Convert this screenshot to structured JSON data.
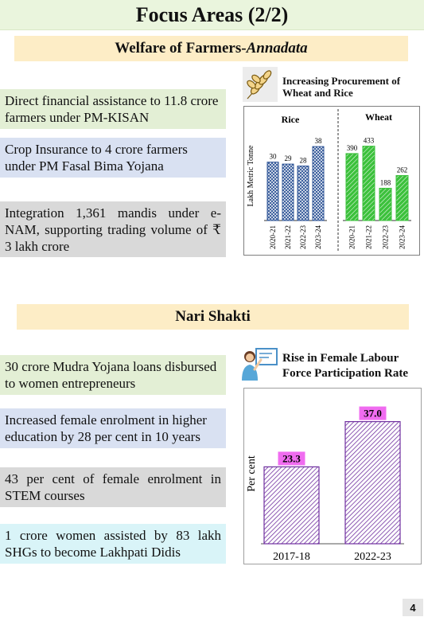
{
  "page": {
    "title": "Focus Areas (2/2)",
    "page_number": "4"
  },
  "farmers": {
    "heading_main": "Welfare of Farmers-",
    "heading_italic": "Annadata",
    "items": [
      "Direct financial assistance to 11.8 crore farmers under PM-KISAN",
      "Crop Insurance to 4 crore farmers under PM Fasal Bima Yojana",
      "Integration 1,361 mandis under e-NAM, supporting trading volume of ₹ 3 lakh crore"
    ],
    "chart_title": "Increasing Procurement of Wheat and Rice"
  },
  "nari": {
    "heading": "Nari Shakti",
    "items": [
      "30 crore Mudra Yojana loans disbursed to women entrepreneurs",
      "Increased female enrolment in higher education by 28 per cent in 10 years",
      "43 per cent of female enrolment in STEM courses",
      "1 crore women assisted by 83 lakh SHGs to become Lakhpati Didis"
    ],
    "chart_title": "Rise in Female Labour Force Participation Rate"
  },
  "chart_data": [
    {
      "type": "bar",
      "title": "Increasing Procurement of Wheat and Rice",
      "ylabel": "Lakh Metric Tonne",
      "panels": [
        {
          "name": "Rice",
          "categories": [
            "2020-21",
            "2021-22",
            "2022-23",
            "2023-24"
          ],
          "values": [
            30,
            29,
            28,
            38
          ],
          "color": "#2f5597",
          "ylim": [
            0,
            45
          ]
        },
        {
          "name": "Wheat",
          "categories": [
            "2020-21",
            "2021-22",
            "2022-23",
            "2023-24"
          ],
          "values": [
            390,
            433,
            188,
            262
          ],
          "color": "#3cc13c",
          "ylim": [
            0,
            510
          ]
        }
      ]
    },
    {
      "type": "bar",
      "title": "Rise in Female Labour Force Participation Rate",
      "ylabel": "Per cent",
      "categories": [
        "2017-18",
        "2022-23"
      ],
      "values": [
        23.3,
        37.0
      ],
      "value_labels": [
        "23.3",
        "37.0"
      ],
      "color": "#7030a0",
      "label_bg": "#f06cf0",
      "ylim": [
        0,
        41
      ]
    }
  ]
}
